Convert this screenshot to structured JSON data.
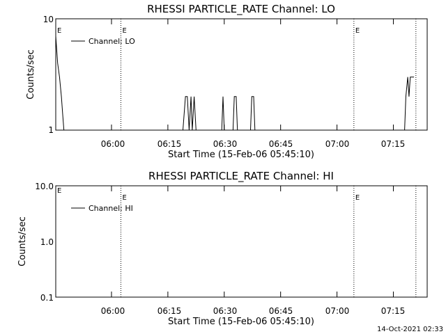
{
  "footer_timestamp": "14-Oct-2021 02:33",
  "chart_data": [
    {
      "type": "line",
      "title": "RHESSI PARTICLE_RATE Channel: LO",
      "xlabel": "Start Time (15-Feb-06 05:45:10)",
      "ylabel": "Counts/sec",
      "y_scale": "log",
      "ylim": [
        1,
        10
      ],
      "y_tick_labels": [
        "1",
        "10"
      ],
      "xlim": [
        "05:45:10",
        "07:24:00"
      ],
      "x_tick_labels": [
        "06:00",
        "06:15",
        "06:30",
        "06:45",
        "07:00",
        "07:15"
      ],
      "legend": {
        "position": "top-left",
        "entries": [
          "Channel: LO"
        ]
      },
      "event_lines": [
        {
          "time": "06:02:30",
          "marker": "E"
        },
        {
          "time": "07:04:30",
          "marker": "E"
        },
        {
          "time": "07:21:00",
          "marker": ""
        }
      ],
      "start_marker": "E",
      "series": [
        {
          "name": "Channel: LO",
          "points": [
            [
              "05:45:10",
              7
            ],
            [
              "05:45:40",
              4
            ],
            [
              "05:46:10",
              3
            ],
            [
              "05:46:40",
              2
            ],
            [
              "05:47:00",
              1.4
            ],
            [
              "05:47:20",
              1
            ],
            [
              "06:19:00",
              1
            ],
            [
              "06:19:40",
              2
            ],
            [
              "06:20:10",
              2
            ],
            [
              "06:20:40",
              1
            ],
            [
              "06:21:10",
              2
            ],
            [
              "06:21:30",
              1
            ],
            [
              "06:22:00",
              2
            ],
            [
              "06:22:30",
              1
            ],
            [
              "06:29:20",
              1
            ],
            [
              "06:29:40",
              2
            ],
            [
              "06:30:00",
              1
            ],
            [
              "06:32:20",
              1
            ],
            [
              "06:32:40",
              2
            ],
            [
              "06:33:10",
              2
            ],
            [
              "06:33:30",
              1
            ],
            [
              "06:37:00",
              1
            ],
            [
              "06:37:20",
              2
            ],
            [
              "06:37:50",
              2
            ],
            [
              "06:38:10",
              1
            ],
            [
              "07:18:00",
              1
            ],
            [
              "07:18:20",
              2
            ],
            [
              "07:18:50",
              3
            ],
            [
              "07:19:10",
              2
            ],
            [
              "07:19:30",
              3
            ],
            [
              "07:20:30",
              3
            ]
          ]
        }
      ]
    },
    {
      "type": "line",
      "title": "RHESSI PARTICLE_RATE Channel: HI",
      "xlabel": "Start Time (15-Feb-06 05:45:10)",
      "ylabel": "Counts/sec",
      "y_scale": "log",
      "ylim": [
        0.1,
        10
      ],
      "y_tick_labels": [
        "0.1",
        "1.0",
        "10.0"
      ],
      "xlim": [
        "05:45:10",
        "07:24:00"
      ],
      "x_tick_labels": [
        "06:00",
        "06:15",
        "06:30",
        "06:45",
        "07:00",
        "07:15"
      ],
      "legend": {
        "position": "top-left",
        "entries": [
          "Channel: HI"
        ]
      },
      "event_lines": [
        {
          "time": "06:02:30",
          "marker": "E"
        },
        {
          "time": "07:04:30",
          "marker": "E"
        },
        {
          "time": "07:21:00",
          "marker": ""
        }
      ],
      "start_marker": "E",
      "series": [
        {
          "name": "Channel: HI",
          "points": []
        }
      ]
    }
  ]
}
